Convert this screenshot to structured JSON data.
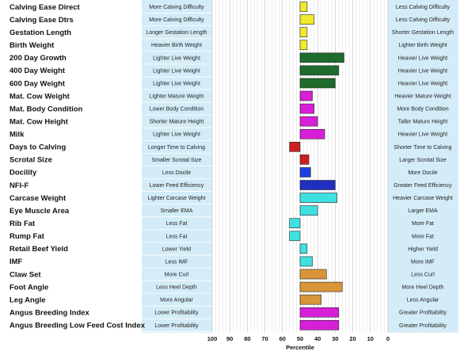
{
  "chart_data": {
    "type": "bar",
    "xlabel": "Percentile",
    "xlim": [
      100,
      0
    ],
    "center": 50,
    "ticks": [
      100,
      90,
      80,
      70,
      60,
      50,
      40,
      30,
      20,
      10,
      0
    ],
    "grid": true,
    "rows": [
      {
        "trait": "Calving Ease Direct",
        "left": "More Calving Difficulty",
        "right": "Less Calving Difficulty",
        "value": 46,
        "color": "#f2ea2a"
      },
      {
        "trait": "Calving Ease Dtrs",
        "left": "More Calving Difficulty",
        "right": "Less Calving Difficulty",
        "value": 42,
        "color": "#f2ea2a"
      },
      {
        "trait": "Gestation Length",
        "left": "Longer Gestation Length",
        "right": "Shorter Gestation Length",
        "value": 46,
        "color": "#f2ea2a"
      },
      {
        "trait": "Birth Weight",
        "left": "Heavier Birth Weight",
        "right": "Lighter Birth Weight",
        "value": 46,
        "color": "#f2ea2a"
      },
      {
        "trait": "200 Day Growth",
        "left": "Lighter Live Weight",
        "right": "Heavier Live Weight",
        "value": 25,
        "color": "#1e6b2c"
      },
      {
        "trait": "400 Day Weight",
        "left": "Lighter Live Weight",
        "right": "Heavier Live Weight",
        "value": 28,
        "color": "#1e6b2c"
      },
      {
        "trait": "600 Day Weight",
        "left": "Lighter Live Weight",
        "right": "Heavier Live Weight",
        "value": 30,
        "color": "#1e6b2c"
      },
      {
        "trait": "Mat. Cow Weight",
        "left": "Lighter Mature Weight",
        "right": "Heavier Mature Weight",
        "value": 43,
        "color": "#d81fd8"
      },
      {
        "trait": "Mat. Body Condition",
        "left": "Lower Body Condition",
        "right": "More Body Condition",
        "value": 42,
        "color": "#d81fd8"
      },
      {
        "trait": "Mat. Cow Height",
        "left": "Shorter Mature Height",
        "right": "Taller Mature Height",
        "value": 40,
        "color": "#d81fd8"
      },
      {
        "trait": "Milk",
        "left": "Lighter Live Weight",
        "right": "Heavier Live Weight",
        "value": 36,
        "color": "#d81fd8"
      },
      {
        "trait": "Days to Calving",
        "left": "Longer Time to Calving",
        "right": "Shorter Time to Calving",
        "value": 56,
        "color": "#cc1f1f"
      },
      {
        "trait": "Scrotal Size",
        "left": "Smaller Scrotal Size",
        "right": "Larger Scrotal Size",
        "value": 45,
        "color": "#cc1f1f"
      },
      {
        "trait": "Docility",
        "left": "Less Docile",
        "right": "More Docile",
        "value": 44,
        "color": "#1f3fe0"
      },
      {
        "trait": "NFI-F",
        "left": "Lower Feed Efficiency",
        "right": "Greater Feed Efficiency",
        "value": 30,
        "color": "#1f2fc0"
      },
      {
        "trait": "Carcase Weight",
        "left": "Lighter Carcase Weight",
        "right": "Heavier Carcase Weight",
        "value": 29,
        "color": "#3fe0e0"
      },
      {
        "trait": "Eye Muscle Area",
        "left": "Smaller EMA",
        "right": "Larger EMA",
        "value": 40,
        "color": "#3fe0e0"
      },
      {
        "trait": "Rib Fat",
        "left": "Less Fat",
        "right": "More Fat",
        "value": 56,
        "color": "#3fe0e0"
      },
      {
        "trait": "Rump Fat",
        "left": "Less Fat",
        "right": "More Fat",
        "value": 56,
        "color": "#3fe0e0"
      },
      {
        "trait": "Retail Beef Yield",
        "left": "Lower Yield",
        "right": "Higher Yield",
        "value": 46,
        "color": "#3fe0e0"
      },
      {
        "trait": "IMF",
        "left": "Less IMF",
        "right": "More IMF",
        "value": 43,
        "color": "#3fe0e0"
      },
      {
        "trait": "Claw Set",
        "left": "More Curl",
        "right": "Less Curl",
        "value": 35,
        "color": "#d9953a"
      },
      {
        "trait": "Foot Angle",
        "left": "Less Heel Depth",
        "right": "More Heel Depth",
        "value": 26,
        "color": "#d9953a"
      },
      {
        "trait": "Leg Angle",
        "left": "More Angular",
        "right": "Less Angular",
        "value": 38,
        "color": "#d9953a"
      },
      {
        "trait": "Angus Breeding Index",
        "left": "Lower Profitability",
        "right": "Greater Profitability",
        "value": 28,
        "color": "#d81fd8"
      },
      {
        "trait": "Angus Breeding Low Feed Cost Index",
        "left": "Lower Profitability",
        "right": "Greater Profitability",
        "value": 28,
        "color": "#d81fd8"
      }
    ]
  },
  "colors": {
    "panel": "#d4ecf7",
    "grid": "#c8c8c8",
    "stroke": "#222222"
  }
}
